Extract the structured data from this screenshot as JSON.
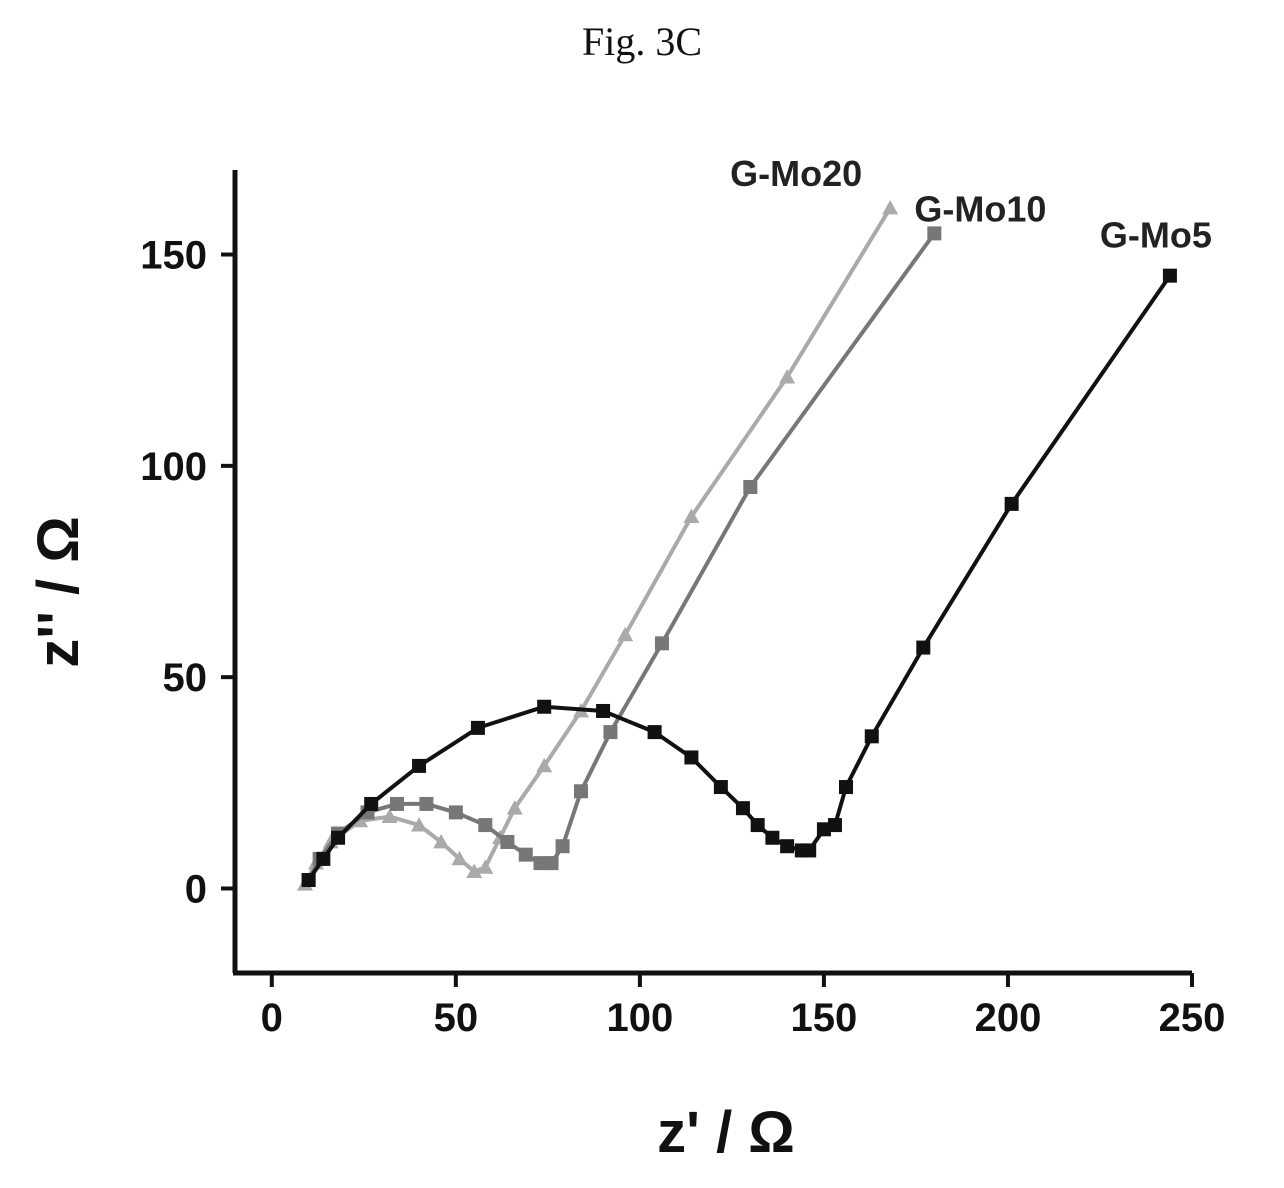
{
  "figure_label": "Fig. 3C",
  "chart_data": {
    "type": "scatter",
    "title": "",
    "xlabel": "z' / Ω",
    "ylabel": "z'' / Ω",
    "xlim": [
      -10,
      250
    ],
    "ylim": [
      -20,
      170
    ],
    "xticks": [
      0,
      50,
      100,
      150,
      200,
      250
    ],
    "yticks": [
      0,
      50,
      100,
      150
    ],
    "grid": false,
    "legend": "none",
    "series": [
      {
        "name": "G-Mo5",
        "color": "#111111",
        "marker": "square",
        "x": [
          10,
          14,
          18,
          27,
          40,
          56,
          74,
          90,
          104,
          114,
          122,
          128,
          132,
          136,
          140,
          144,
          146,
          150,
          153,
          156,
          163,
          177,
          201,
          244
        ],
        "y": [
          2,
          7,
          12,
          20,
          29,
          38,
          43,
          42,
          37,
          31,
          24,
          19,
          15,
          12,
          10,
          9,
          9,
          14,
          15,
          24,
          36,
          57,
          91,
          145
        ]
      },
      {
        "name": "G-Mo10",
        "color": "#777777",
        "marker": "square",
        "x": [
          10,
          13,
          18,
          26,
          34,
          42,
          50,
          58,
          64,
          69,
          73,
          76,
          79,
          84,
          92,
          106,
          130,
          180
        ],
        "y": [
          2,
          7,
          13,
          18,
          20,
          20,
          18,
          15,
          11,
          8,
          6,
          6,
          10,
          23,
          37,
          58,
          95,
          155
        ]
      },
      {
        "name": "G-Mo20",
        "color": "#aaaaaa",
        "marker": "triangle",
        "x": [
          9,
          12,
          16,
          24,
          32,
          40,
          46,
          51,
          55,
          58,
          62,
          66,
          74,
          84,
          96,
          114,
          140,
          168
        ],
        "y": [
          1,
          6,
          11,
          16,
          17,
          15,
          11,
          7,
          4,
          5,
          12,
          19,
          29,
          42,
          60,
          88,
          121,
          161
        ]
      }
    ]
  }
}
